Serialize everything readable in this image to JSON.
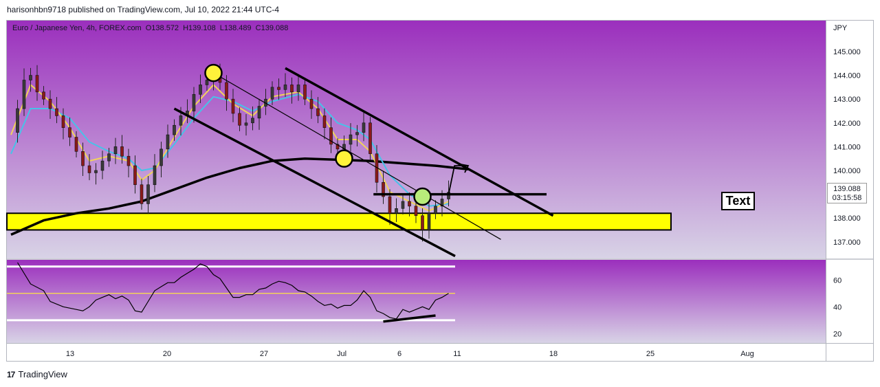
{
  "header": {
    "published": "harisonhbn9718 published on TradingView.com, Jul 10, 2022 21:44 UTC-4"
  },
  "legend": {
    "symbol": "Euro / Japanese Yen, 4h, FOREX.com",
    "open": "O138.572",
    "high": "H139.108",
    "low": "L138.489",
    "close": "C139.088"
  },
  "price_axis": {
    "currency": "JPY",
    "ticks": [
      "145.000",
      "144.000",
      "143.000",
      "142.000",
      "141.000",
      "140.000",
      "138.000",
      "137.000"
    ],
    "last_price": "139.088",
    "countdown": "03:15:58"
  },
  "rsi_axis": {
    "ticks": [
      "60",
      "40",
      "20"
    ]
  },
  "time_axis": {
    "ticks": [
      "13",
      "20",
      "27",
      "Jul",
      "6",
      "11",
      "18",
      "25",
      "Aug"
    ]
  },
  "annotation": {
    "text": "Text"
  },
  "footer": {
    "brand": "TradingView",
    "logo": "17"
  },
  "colors": {
    "pane_top": "#9b2fbd",
    "pane_bottom": "#d8d3e6",
    "bull": "#3a3a3a",
    "bear": "#8b1a1a",
    "ema_fast": "#f2d35a",
    "ema_mid": "#47c3e8",
    "ma_slow": "#000000",
    "zone": "#ffff00"
  },
  "chart_data": [
    {
      "type": "candlestick",
      "title": "Euro / Japanese Yen, 4h, FOREX.com",
      "ylim": [
        136.3,
        146.3
      ],
      "x_ticks": [
        "13",
        "20",
        "27",
        "Jul",
        "6",
        "11",
        "18",
        "25",
        "Aug"
      ],
      "price_path": [
        [
          0,
          141.6
        ],
        [
          1,
          142.6
        ],
        [
          2,
          143.8
        ],
        [
          3,
          144.0
        ],
        [
          4,
          143.3
        ],
        [
          5,
          143.0
        ],
        [
          6,
          142.6
        ],
        [
          7,
          142.3
        ],
        [
          8,
          141.8
        ],
        [
          9,
          141.4
        ],
        [
          10,
          140.8
        ],
        [
          11,
          140.2
        ],
        [
          12,
          139.9
        ],
        [
          13,
          140.0
        ],
        [
          14,
          140.4
        ],
        [
          15,
          140.7
        ],
        [
          16,
          141.0
        ],
        [
          17,
          140.6
        ],
        [
          18,
          140.2
        ],
        [
          19,
          139.4
        ],
        [
          20,
          138.6
        ],
        [
          21,
          139.4
        ],
        [
          22,
          140.2
        ],
        [
          23,
          140.9
        ],
        [
          24,
          141.5
        ],
        [
          25,
          141.9
        ],
        [
          26,
          142.3
        ],
        [
          27,
          142.5
        ],
        [
          28,
          143.2
        ],
        [
          29,
          143.6
        ],
        [
          30,
          143.8
        ],
        [
          31,
          144.0
        ],
        [
          32,
          143.7
        ],
        [
          33,
          143.0
        ],
        [
          34,
          142.4
        ],
        [
          35,
          141.9
        ],
        [
          36,
          142.0
        ],
        [
          37,
          142.2
        ],
        [
          38,
          142.7
        ],
        [
          39,
          143.0
        ],
        [
          40,
          143.5
        ],
        [
          41,
          143.4
        ],
        [
          42,
          143.6
        ],
        [
          43,
          143.3
        ],
        [
          44,
          143.6
        ],
        [
          45,
          143.0
        ],
        [
          46,
          142.6
        ],
        [
          47,
          142.3
        ],
        [
          48,
          141.8
        ],
        [
          49,
          141.1
        ],
        [
          50,
          140.9
        ],
        [
          51,
          141.1
        ],
        [
          52,
          141.5
        ],
        [
          53,
          141.6
        ],
        [
          54,
          142.0
        ],
        [
          55,
          140.7
        ],
        [
          56,
          139.5
        ],
        [
          57,
          138.9
        ],
        [
          58,
          138.2
        ],
        [
          59,
          138.4
        ],
        [
          60,
          138.7
        ],
        [
          61,
          138.5
        ],
        [
          62,
          138.1
        ],
        [
          63,
          137.5
        ],
        [
          64,
          138.2
        ],
        [
          65,
          138.5
        ],
        [
          66,
          138.8
        ],
        [
          67,
          139.088
        ]
      ],
      "ema_fast_path": [
        [
          0,
          141.5
        ],
        [
          3,
          143.6
        ],
        [
          6,
          142.9
        ],
        [
          9,
          141.8
        ],
        [
          12,
          140.4
        ],
        [
          15,
          140.6
        ],
        [
          18,
          140.4
        ],
        [
          20,
          139.6
        ],
        [
          22,
          140.0
        ],
        [
          25,
          141.4
        ],
        [
          28,
          142.7
        ],
        [
          31,
          143.6
        ],
        [
          34,
          142.8
        ],
        [
          37,
          142.3
        ],
        [
          40,
          143.1
        ],
        [
          44,
          143.3
        ],
        [
          47,
          142.6
        ],
        [
          50,
          141.3
        ],
        [
          53,
          141.3
        ],
        [
          55,
          140.8
        ],
        [
          58,
          139.1
        ],
        [
          61,
          138.7
        ],
        [
          64,
          138.3
        ],
        [
          67,
          138.7
        ]
      ],
      "ema_mid_path": [
        [
          0,
          140.7
        ],
        [
          3,
          142.6
        ],
        [
          6,
          142.6
        ],
        [
          9,
          142.2
        ],
        [
          12,
          141.2
        ],
        [
          15,
          140.8
        ],
        [
          18,
          140.5
        ],
        [
          20,
          140.0
        ],
        [
          22,
          140.1
        ],
        [
          25,
          141.1
        ],
        [
          28,
          142.2
        ],
        [
          31,
          143.1
        ],
        [
          34,
          142.9
        ],
        [
          37,
          142.5
        ],
        [
          40,
          142.9
        ],
        [
          44,
          143.2
        ],
        [
          47,
          142.9
        ],
        [
          50,
          142.0
        ],
        [
          53,
          141.7
        ],
        [
          55,
          141.3
        ],
        [
          58,
          139.8
        ],
        [
          61,
          139.0
        ],
        [
          64,
          138.5
        ],
        [
          67,
          138.6
        ]
      ],
      "ma_slow_path": [
        [
          0,
          137.3
        ],
        [
          5,
          137.9
        ],
        [
          10,
          138.2
        ],
        [
          15,
          138.4
        ],
        [
          20,
          138.7
        ],
        [
          25,
          139.2
        ],
        [
          30,
          139.7
        ],
        [
          35,
          140.1
        ],
        [
          40,
          140.4
        ],
        [
          45,
          140.5
        ],
        [
          50,
          140.45
        ],
        [
          55,
          140.4
        ],
        [
          60,
          140.3
        ],
        [
          65,
          140.2
        ],
        [
          70,
          140.05
        ]
      ],
      "support_zone": [
        137.5,
        138.2
      ],
      "horizontal_level": 139.0,
      "channel_upper": [
        [
          42,
          144.3
        ],
        [
          83,
          138.1
        ]
      ],
      "channel_lower": [
        [
          25,
          142.6
        ],
        [
          68,
          136.4
        ]
      ],
      "channel_mid": [
        [
          31,
          144.1
        ],
        [
          75,
          137.1
        ]
      ],
      "markers": [
        [
          31,
          144.1
        ],
        [
          51,
          140.5
        ],
        [
          63,
          138.9
        ]
      ],
      "projection_arrow": [
        [
          67,
          139.0
        ],
        [
          70,
          140.2
        ]
      ]
    },
    {
      "type": "line",
      "title": "RSI",
      "ylim": [
        13,
        75
      ],
      "y_ticks": [
        60,
        40,
        20
      ],
      "levels": [
        70,
        50,
        30
      ],
      "rsi_path": [
        [
          1,
          73
        ],
        [
          2,
          65
        ],
        [
          3,
          57
        ],
        [
          5,
          52
        ],
        [
          6,
          44
        ],
        [
          8,
          40
        ],
        [
          10,
          38
        ],
        [
          11,
          37
        ],
        [
          12,
          40
        ],
        [
          13,
          45
        ],
        [
          14,
          47
        ],
        [
          15,
          49
        ],
        [
          16,
          46
        ],
        [
          17,
          48
        ],
        [
          18,
          45
        ],
        [
          19,
          37
        ],
        [
          20,
          36
        ],
        [
          21,
          44
        ],
        [
          22,
          52
        ],
        [
          23,
          55
        ],
        [
          24,
          58
        ],
        [
          25,
          58
        ],
        [
          26,
          62
        ],
        [
          27,
          65
        ],
        [
          28,
          68
        ],
        [
          29,
          72
        ],
        [
          30,
          70
        ],
        [
          31,
          64
        ],
        [
          32,
          61
        ],
        [
          33,
          54
        ],
        [
          34,
          47
        ],
        [
          35,
          47
        ],
        [
          36,
          49
        ],
        [
          37,
          49
        ],
        [
          38,
          53
        ],
        [
          39,
          54
        ],
        [
          40,
          57
        ],
        [
          41,
          59
        ],
        [
          42,
          58
        ],
        [
          43,
          56
        ],
        [
          44,
          52
        ],
        [
          45,
          51
        ],
        [
          46,
          48
        ],
        [
          47,
          44
        ],
        [
          48,
          41
        ],
        [
          49,
          42
        ],
        [
          50,
          39
        ],
        [
          51,
          41
        ],
        [
          52,
          41
        ],
        [
          53,
          45
        ],
        [
          54,
          52
        ],
        [
          55,
          47
        ],
        [
          56,
          37
        ],
        [
          57,
          35
        ],
        [
          58,
          32
        ],
        [
          59,
          31
        ],
        [
          60,
          38
        ],
        [
          61,
          36
        ],
        [
          62,
          38
        ],
        [
          63,
          40
        ],
        [
          64,
          38
        ],
        [
          65,
          45
        ],
        [
          66,
          47
        ],
        [
          67,
          50
        ]
      ],
      "divergence_line": [
        [
          57,
          29
        ],
        [
          65,
          33.5
        ]
      ]
    }
  ]
}
